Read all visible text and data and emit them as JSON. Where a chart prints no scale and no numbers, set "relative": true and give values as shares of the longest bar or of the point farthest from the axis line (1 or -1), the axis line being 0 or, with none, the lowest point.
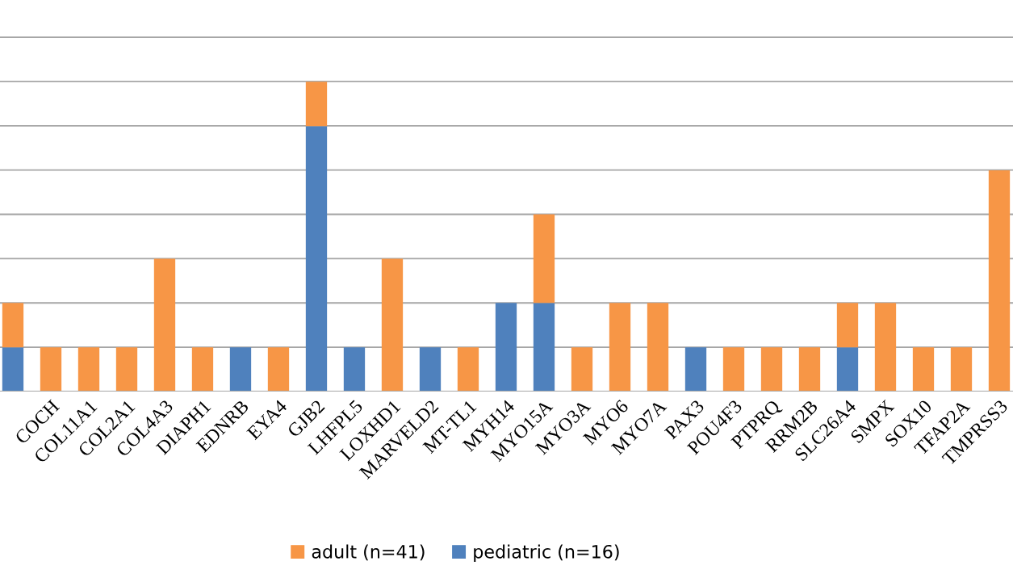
{
  "chart_data": {
    "type": "bar",
    "relative": true,
    "stacked": true,
    "grid": "y",
    "legend": "bottom",
    "categories": [
      null,
      "COCH",
      "COL11A1",
      "COL2A1",
      "COL4A3",
      "DIAPH1",
      "EDNRB",
      "EYA4",
      "GJB2",
      "LHFPL5",
      "LOXHD1",
      "MARVELD2",
      "MT-TL1",
      "MYH14",
      "MYO15A",
      "MYO3A",
      "MYO6",
      "MYO7A",
      "PAX3",
      "POU4F3",
      "PTPRQ",
      "RRM2B",
      "SLC26A4",
      "SMPX",
      "SOX10",
      "TFAP2A",
      "TMPRSS3"
    ],
    "series": [
      {
        "name": "pediatric (n=16)",
        "color": "#4f81bd",
        "values": [
          0.143,
          0,
          0,
          0,
          0,
          0,
          0.143,
          0,
          0.857,
          0.143,
          0,
          0.143,
          0,
          0.286,
          0.286,
          0,
          0,
          0,
          0.143,
          0,
          0,
          0,
          0.143,
          0,
          0,
          0,
          0
        ]
      },
      {
        "name": "adult (n=41)",
        "color": "#f79646",
        "values": [
          0.143,
          0.143,
          0.143,
          0.143,
          0.429,
          0.143,
          0,
          0.143,
          0.143,
          0,
          0.429,
          0,
          0.143,
          0,
          0.286,
          0.143,
          0.286,
          0.286,
          0,
          0.143,
          0.143,
          0.143,
          0.143,
          0.286,
          0.143,
          0.143,
          0.714
        ]
      }
    ]
  }
}
